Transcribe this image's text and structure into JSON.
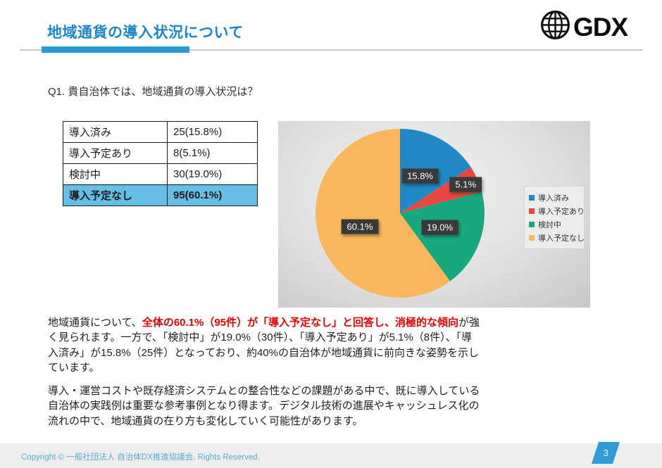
{
  "header": {
    "title": "地域通貨の導入状況について",
    "logo_text": "GDX",
    "logo_icon": "globe-icon"
  },
  "question": "Q1. 貴自治体では、地域通貨の導入状況は？",
  "table": {
    "rows": [
      {
        "label": "導入済み",
        "value": "25(15.8%)",
        "highlight": false
      },
      {
        "label": "導入予定あり",
        "value": "8(5.1%)",
        "highlight": false
      },
      {
        "label": "検討中",
        "value": "30(19.0%)",
        "highlight": false
      },
      {
        "label": "導入予定なし",
        "value": "95(60.1%)",
        "highlight": true
      }
    ]
  },
  "chart_data": {
    "type": "pie",
    "categories": [
      "導入済み",
      "導入予定あり",
      "検討中",
      "導入予定なし"
    ],
    "values": [
      15.8,
      5.1,
      19.0,
      60.1
    ],
    "counts": [
      25,
      8,
      30,
      95
    ],
    "data_labels": [
      "15.8%",
      "5.1%",
      "19.0%",
      "60.1%"
    ],
    "colors": [
      "#2189C5",
      "#E8473F",
      "#17A87E",
      "#F9B65A"
    ],
    "title": "",
    "legend_position": "right",
    "start_angle": "top",
    "direction": "clockwise"
  },
  "analysis": {
    "paragraph1": [
      {
        "text": "地域通貨について、",
        "style": "normal"
      },
      {
        "text": "全体の60.1%（95件）が「導入予定なし」と回答し、消極的な傾向",
        "style": "red"
      },
      {
        "text": "が強く見られます。一方で、「検討中」が19.0%（30件）、「導入予定あり」が5.1%（8件）、「導入済み」が15.8%（25件）となっており、約40%の自治体が地域通貨に前向きな姿勢を示しています。",
        "style": "normal"
      }
    ],
    "paragraph2": [
      {
        "text": "導入・運営コストや既存経済システムとの整合性などの課題がある中で、既に導入している自治体の実践例は重要な参考事例となり得ます。デジタル技術の進展やキャッシュレス化の流れの中で、地域通貨の在り方も変化していく可能性があります。",
        "style": "normal"
      }
    ]
  },
  "footer": {
    "copyright": "Copyright © 一般社団法人 自治体DX推進協議会. Rights Reserved.",
    "page_number": "3"
  },
  "colors": {
    "title_blue": "#1C86C8",
    "accent_bar": "#2B99D3",
    "table_highlight": "#66BEE7",
    "chip_bg": "#3A3A3A",
    "footer_text": "#58ABD3",
    "badge_bg": "#2E9BD6",
    "red_emphasis": "#E60000"
  }
}
